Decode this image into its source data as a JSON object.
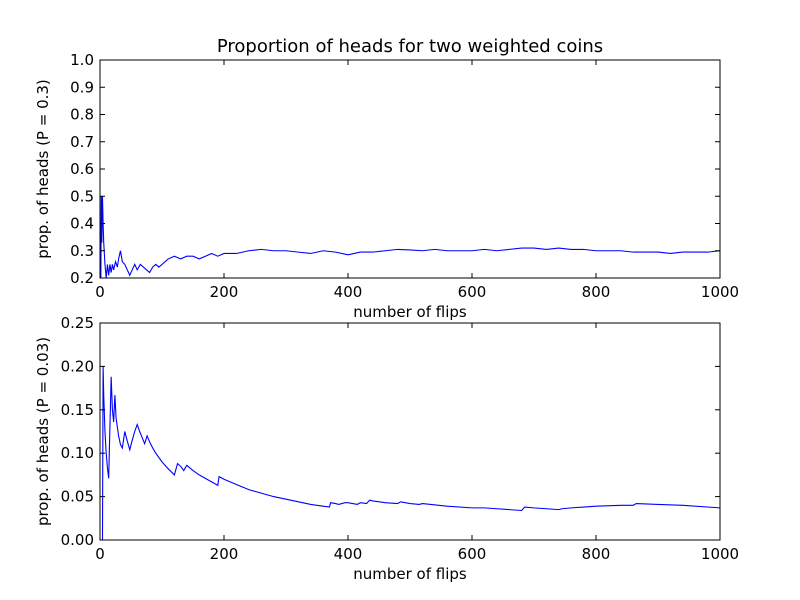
{
  "chart_data": [
    {
      "type": "line",
      "title": "Proportion of heads for two weighted coins",
      "xlabel": "number of flips",
      "ylabel": "prop. of heads (P = 0.3)",
      "xlim": [
        0,
        1000
      ],
      "ylim": [
        0.2,
        1.0
      ],
      "xticks": [
        "0",
        "200",
        "400",
        "600",
        "800",
        "1000"
      ],
      "yticks": [
        "0.2",
        "0.3",
        "0.4",
        "0.5",
        "0.6",
        "0.7",
        "0.8",
        "0.9",
        "1.0"
      ],
      "grid": false,
      "line_color": "#0000ff",
      "x": [
        1,
        2,
        3,
        4,
        5,
        6,
        8,
        10,
        12,
        14,
        16,
        18,
        20,
        22,
        25,
        28,
        30,
        33,
        36,
        40,
        44,
        48,
        52,
        56,
        60,
        65,
        70,
        75,
        80,
        85,
        90,
        95,
        100,
        110,
        120,
        130,
        140,
        150,
        160,
        170,
        180,
        190,
        200,
        220,
        240,
        260,
        280,
        300,
        320,
        340,
        360,
        380,
        400,
        420,
        440,
        460,
        480,
        500,
        520,
        540,
        560,
        580,
        600,
        620,
        640,
        660,
        680,
        700,
        720,
        740,
        760,
        780,
        800,
        820,
        840,
        860,
        880,
        900,
        920,
        940,
        960,
        980,
        1000
      ],
      "values": [
        0.0,
        0.5,
        0.33,
        0.5,
        0.4,
        0.33,
        0.25,
        0.2,
        0.25,
        0.21,
        0.25,
        0.22,
        0.25,
        0.23,
        0.26,
        0.24,
        0.27,
        0.3,
        0.26,
        0.25,
        0.23,
        0.21,
        0.23,
        0.25,
        0.23,
        0.25,
        0.24,
        0.23,
        0.22,
        0.24,
        0.25,
        0.24,
        0.25,
        0.27,
        0.28,
        0.27,
        0.28,
        0.28,
        0.27,
        0.28,
        0.29,
        0.28,
        0.29,
        0.29,
        0.3,
        0.305,
        0.3,
        0.3,
        0.295,
        0.29,
        0.3,
        0.295,
        0.285,
        0.295,
        0.295,
        0.3,
        0.305,
        0.303,
        0.3,
        0.305,
        0.3,
        0.3,
        0.3,
        0.305,
        0.3,
        0.305,
        0.31,
        0.31,
        0.305,
        0.31,
        0.305,
        0.305,
        0.3,
        0.3,
        0.3,
        0.295,
        0.295,
        0.295,
        0.29,
        0.295,
        0.295,
        0.295,
        0.3
      ]
    },
    {
      "type": "line",
      "title": "",
      "xlabel": "number of flips",
      "ylabel": "prop. of heads (P = 0.03)",
      "xlim": [
        0,
        1000
      ],
      "ylim": [
        0.0,
        0.25
      ],
      "xticks": [
        "0",
        "200",
        "400",
        "600",
        "800",
        "1000"
      ],
      "yticks": [
        "0.00",
        "0.05",
        "0.10",
        "0.15",
        "0.20",
        "0.25"
      ],
      "grid": false,
      "line_color": "#0000ff",
      "x": [
        1,
        2,
        3,
        4,
        5,
        6,
        8,
        10,
        12,
        14,
        16,
        18,
        20,
        22,
        24,
        26,
        28,
        30,
        33,
        36,
        40,
        44,
        48,
        52,
        56,
        60,
        64,
        68,
        72,
        76,
        80,
        85,
        90,
        100,
        110,
        120,
        125,
        130,
        135,
        140,
        150,
        160,
        170,
        180,
        190,
        192,
        200,
        220,
        240,
        260,
        280,
        300,
        320,
        340,
        360,
        370,
        372,
        380,
        385,
        395,
        400,
        415,
        420,
        430,
        435,
        440,
        460,
        480,
        485,
        500,
        515,
        520,
        560,
        600,
        620,
        660,
        680,
        685,
        700,
        740,
        745,
        760,
        780,
        800,
        840,
        860,
        865,
        900,
        940,
        1000
      ],
      "values": [
        0.0,
        0.0,
        0.0,
        0.0,
        0.2,
        0.167,
        0.125,
        0.1,
        0.083,
        0.071,
        0.13,
        0.188,
        0.15,
        0.136,
        0.167,
        0.14,
        0.13,
        0.12,
        0.11,
        0.106,
        0.125,
        0.114,
        0.104,
        0.115,
        0.125,
        0.133,
        0.125,
        0.118,
        0.111,
        0.12,
        0.113,
        0.106,
        0.1,
        0.09,
        0.082,
        0.075,
        0.088,
        0.085,
        0.08,
        0.086,
        0.08,
        0.075,
        0.071,
        0.067,
        0.063,
        0.073,
        0.07,
        0.064,
        0.058,
        0.054,
        0.05,
        0.047,
        0.044,
        0.041,
        0.039,
        0.038,
        0.043,
        0.042,
        0.041,
        0.043,
        0.043,
        0.041,
        0.043,
        0.042,
        0.046,
        0.045,
        0.043,
        0.042,
        0.044,
        0.042,
        0.041,
        0.042,
        0.039,
        0.037,
        0.037,
        0.035,
        0.034,
        0.038,
        0.037,
        0.035,
        0.036,
        0.037,
        0.038,
        0.039,
        0.04,
        0.04,
        0.042,
        0.041,
        0.04,
        0.037
      ]
    }
  ]
}
